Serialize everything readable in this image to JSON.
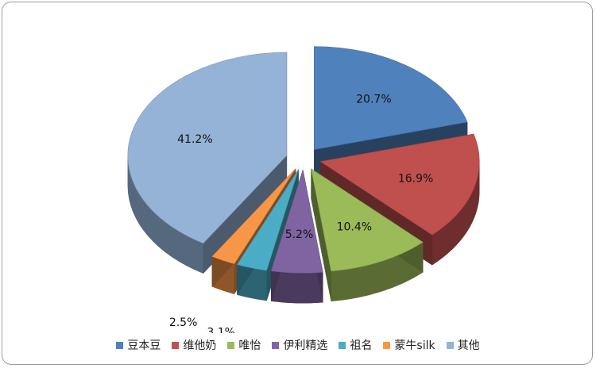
{
  "chart_data": {
    "type": "pie",
    "title": "",
    "legend_position": "bottom",
    "categories": [
      "豆本豆",
      "维他奶",
      "唯怡",
      "伊利精选",
      "祖名",
      "蒙牛silk",
      "其他"
    ],
    "values": [
      20.7,
      16.9,
      10.4,
      5.2,
      3.1,
      2.5,
      41.2
    ],
    "labels": [
      "20.7%",
      "16.9%",
      "10.4%",
      "5.2%",
      "3.1%",
      "2.5%",
      "41.2%"
    ],
    "colors": [
      "#4f81bd",
      "#c0504d",
      "#9bbb59",
      "#8064a2",
      "#4bacc6",
      "#f79646",
      "#95b3d7"
    ],
    "style": "3d-exploded"
  }
}
